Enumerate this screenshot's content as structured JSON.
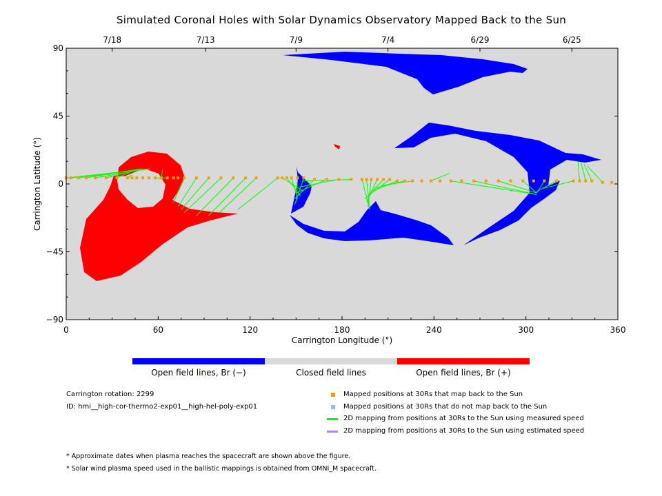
{
  "chart_data": {
    "type": "scatter",
    "title": "Simulated Coronal Holes with Solar Dynamics Observatory Mapped Back to the Sun",
    "xlabel": "Carrington Longitude (°)",
    "ylabel": "Carrington Latitude (°)",
    "xlim": [
      0,
      360
    ],
    "ylim": [
      -90,
      90
    ],
    "x_ticks": [
      "0",
      "60",
      "120",
      "180",
      "240",
      "300",
      "360"
    ],
    "y_ticks": [
      "90",
      "45",
      "0",
      "−45",
      "−90"
    ],
    "top_axis_dates": [
      {
        "label": "7/18",
        "lon": 30
      },
      {
        "label": "7/13",
        "lon": 91
      },
      {
        "label": "7/9",
        "lon": 150
      },
      {
        "label": "7/4",
        "lon": 210
      },
      {
        "label": "6/29",
        "lon": 270
      },
      {
        "label": "6/25",
        "lon": 330
      }
    ],
    "background_color": "#d9d9d9",
    "grid": false,
    "coronal_holes": [
      {
        "polarity": "negative",
        "region": "north polar extension",
        "lon": [
          142,
          301
        ],
        "lat": [
          59,
          86
        ]
      },
      {
        "polarity": "negative",
        "region": "mid-latitude ring",
        "lon": [
          212,
          349
        ],
        "lat": [
          -40,
          40
        ]
      },
      {
        "polarity": "negative",
        "region": "equatorial ring",
        "lon": [
          147,
          253
        ],
        "lat": [
          -40,
          5
        ]
      },
      {
        "polarity": "positive",
        "region": "southern ring",
        "lon": [
          10,
          113
        ],
        "lat": [
          -63,
          21
        ]
      },
      {
        "polarity": "positive",
        "region": "small patch",
        "lon": [
          176,
          179
        ],
        "lat": [
          23,
          26
        ]
      }
    ],
    "mapped_points_lon": [
      0,
      3,
      8,
      13,
      19,
      26,
      33,
      40,
      43,
      46,
      50,
      54,
      58,
      62,
      66,
      70,
      73,
      77,
      85,
      93,
      101,
      109,
      117,
      124,
      138,
      141,
      144,
      147,
      151,
      155,
      162,
      170,
      178,
      186,
      193,
      196,
      199,
      203,
      207,
      211,
      216,
      221,
      226,
      232,
      238,
      244,
      251,
      258,
      266,
      274,
      282,
      290,
      298,
      305,
      312,
      320,
      331,
      335,
      339,
      343,
      350,
      356
    ],
    "mapped_points_lat": [
      4,
      4,
      4,
      4,
      4,
      4,
      4,
      4,
      4,
      4,
      4,
      4,
      4,
      4,
      4,
      4,
      4,
      4,
      4,
      4,
      4,
      4,
      4,
      4,
      4,
      4,
      4,
      4,
      4,
      4,
      3,
      3,
      3,
      3,
      3,
      3,
      3,
      3,
      3,
      3,
      2,
      2,
      2,
      2,
      2,
      2,
      2,
      2,
      2,
      2,
      2,
      2,
      2,
      2,
      2,
      2,
      2,
      2,
      2,
      2,
      1,
      1
    ],
    "footpoints_lon": [
      54,
      55,
      50,
      48,
      47,
      45,
      42,
      43,
      63,
      66,
      70,
      73,
      75,
      77,
      85,
      93,
      100,
      112,
      155,
      153,
      151,
      150,
      149,
      149,
      150,
      152,
      154,
      198,
      198,
      197,
      196,
      195,
      197,
      199,
      201,
      206,
      250,
      307,
      307,
      307,
      307,
      307,
      307,
      311,
      334,
      336,
      338,
      340
    ],
    "footpoints_lat": [
      10,
      10,
      10,
      10,
      9,
      9,
      8,
      6,
      10,
      4,
      -12,
      -15,
      -17,
      -19,
      -21,
      -21,
      -19,
      -17,
      -5,
      -8,
      -10,
      -12,
      -14,
      -10,
      -6,
      -2,
      2,
      -17,
      -16,
      -15,
      -12,
      -10,
      -8,
      -5,
      -3,
      -1,
      7,
      -7,
      -7,
      -6,
      -6,
      -6,
      -5,
      -3,
      15,
      14,
      13,
      12
    ],
    "unmapped_points_lon": [],
    "unmapped_points_lat": []
  },
  "colorbar": {
    "segments": [
      {
        "label": "Open field lines, Br (−)",
        "color": "#0000ff"
      },
      {
        "label": "Closed field lines",
        "color": "#d9d9d9"
      },
      {
        "label": "Open field lines, Br (+)",
        "color": "#ff0000"
      }
    ]
  },
  "info": {
    "rotation": "Carrington rotation: 2299",
    "id": "ID: hmi__high-cor-thermo2-exp01__high-hel-poly-exp01"
  },
  "legend": [
    {
      "label": "Mapped positions at 30Rs that map back to the Sun",
      "color": "#f0a000",
      "kind": "square"
    },
    {
      "label": "Mapped positions at 30Rs that do not map back to the Sun",
      "color": "#88c0f0",
      "kind": "square"
    },
    {
      "label": "2D mapping from positions at 30Rs to the Sun using measured speed",
      "color": "#00ff00",
      "kind": "line"
    },
    {
      "label": "2D mapping from positions at 30Rs to the Sun using estimated speed",
      "color": "#c080f0",
      "kind": "line"
    }
  ],
  "notes": [
    "* Approximate dates when plasma reaches the spacecraft are shown above the figure.",
    "* Solar wind plasma speed used in the ballistic mappings is obtained from OMNI_M spacecraft."
  ]
}
